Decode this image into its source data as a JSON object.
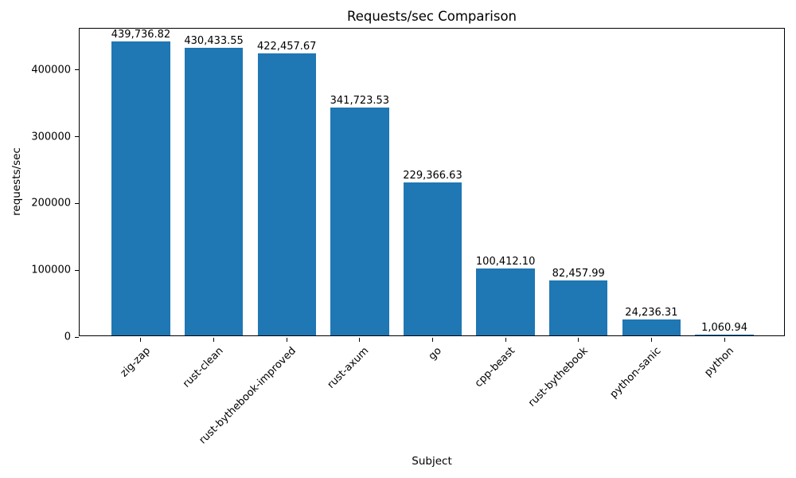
{
  "chart_data": {
    "type": "bar",
    "title": "Requests/sec Comparison",
    "xlabel": "Subject",
    "ylabel": "requests/sec",
    "categories": [
      "zig-zap",
      "rust-clean",
      "rust-bythebook-improved",
      "rust-axum",
      "go",
      "cpp-beast",
      "rust-bythebook",
      "python-sanic",
      "python"
    ],
    "values": [
      439736.82,
      430433.55,
      422457.67,
      341723.53,
      229366.63,
      100412.1,
      82457.99,
      24236.31,
      1060.94
    ],
    "bar_labels": [
      "439,736.82",
      "430,433.55",
      "422,457.67",
      "341,723.53",
      "229,366.63",
      "100,412.10",
      "82,457.99",
      "24,236.31",
      "1,060.94"
    ],
    "yticks": [
      0,
      100000,
      200000,
      300000,
      400000
    ],
    "ytick_labels": [
      "0",
      "100000",
      "200000",
      "300000",
      "400000"
    ],
    "ylim": [
      0,
      461723.66
    ],
    "bar_color": "#1f77b4",
    "bar_width_fraction": 0.8,
    "grid": false,
    "legend_position": "none",
    "xtick_rotation_deg": 45
  }
}
